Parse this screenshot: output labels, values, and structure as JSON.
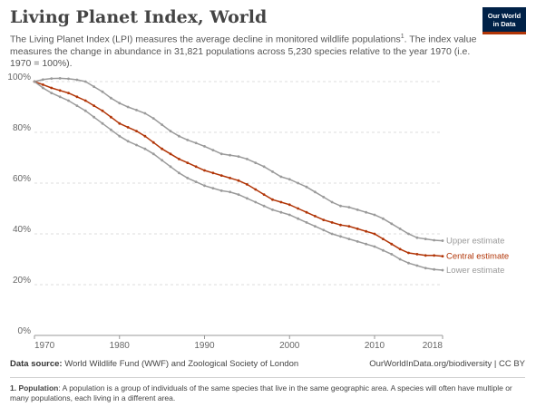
{
  "header": {
    "title": "Living Planet Index, World",
    "subtitle": "The Living Planet Index (LPI) measures the average decline in monitored wildlife populations",
    "subtitle_sup": "1",
    "subtitle_rest": ". The index value measures the change in abundance in 31,821 populations across 5,230 species relative to the year 1970 (i.e. 1970 = 100%).",
    "logo_line1": "Our World",
    "logo_line2": "in Data"
  },
  "footer": {
    "source_label": "Data source:",
    "source_text": " World Wildlife Fund (WWF) and Zoological Society of London",
    "link": "OurWorldInData.org/biodiversity | CC BY",
    "footnote_label": "1. Population",
    "footnote_text": ": A population is a group of individuals of the same species that live in the same geographic area. A species will often have multiple or many populations, each living in a different area."
  },
  "colors": {
    "central": "#b13507",
    "bounds": "#9a9a9a",
    "grid": "#dddddd",
    "axis": "#999999"
  },
  "chart_data": {
    "type": "line",
    "title": "Living Planet Index, World",
    "xlabel": "",
    "ylabel": "",
    "xlim": [
      1970,
      2018
    ],
    "ylim": [
      0,
      100
    ],
    "x_ticks": [
      1970,
      1980,
      1990,
      2000,
      2010,
      2018
    ],
    "y_ticks": [
      0,
      20,
      40,
      60,
      80,
      100
    ],
    "y_tick_labels": [
      "0%",
      "20%",
      "40%",
      "60%",
      "80%",
      "100%"
    ],
    "grid": true,
    "legend": "labels at line ends (right)",
    "x": [
      1970,
      1971,
      1972,
      1973,
      1974,
      1975,
      1976,
      1977,
      1978,
      1979,
      1980,
      1981,
      1982,
      1983,
      1984,
      1985,
      1986,
      1987,
      1988,
      1989,
      1990,
      1991,
      1992,
      1993,
      1994,
      1995,
      1996,
      1997,
      1998,
      1999,
      2000,
      2001,
      2002,
      2003,
      2004,
      2005,
      2006,
      2007,
      2008,
      2009,
      2010,
      2011,
      2012,
      2013,
      2014,
      2015,
      2016,
      2017,
      2018
    ],
    "series": [
      {
        "name": "Upper estimate",
        "values": [
          100,
          100.8,
          101.2,
          101.3,
          101.1,
          100.7,
          100,
          98,
          96,
          93.5,
          91.5,
          90,
          88.8,
          87.5,
          85.5,
          83,
          80.5,
          78.5,
          77,
          75.8,
          74.5,
          73,
          71.5,
          71,
          70.5,
          69.5,
          68,
          66.5,
          64.5,
          62.5,
          61.5,
          60,
          58.5,
          56.5,
          54.5,
          52.5,
          51,
          50.5,
          49.5,
          48.5,
          47.5,
          46,
          44,
          42,
          40,
          38.5,
          38,
          37.5,
          37.3
        ]
      },
      {
        "name": "Central estimate",
        "values": [
          100,
          98.8,
          97.5,
          96.5,
          95.5,
          94,
          92.5,
          90.5,
          88.5,
          86,
          83.5,
          82,
          80.5,
          78.5,
          76,
          73.5,
          71.5,
          69.5,
          68,
          66.5,
          65,
          64,
          63,
          62,
          61,
          59.5,
          57.5,
          55.5,
          53.5,
          52.5,
          51.5,
          50,
          48.5,
          47,
          45.5,
          44.5,
          43.5,
          43,
          42,
          41,
          40,
          38,
          36,
          34,
          32.5,
          32,
          31.5,
          31.5,
          31.2
        ]
      },
      {
        "name": "Lower estimate",
        "values": [
          100,
          97.5,
          95.5,
          94,
          92.5,
          90.5,
          88.5,
          86,
          83.5,
          81,
          78.5,
          76.5,
          75,
          73.5,
          71.5,
          69,
          66.5,
          64,
          62,
          60.5,
          59,
          58,
          57,
          56.5,
          55.5,
          54,
          52.5,
          51,
          49.5,
          48.5,
          47.5,
          46,
          44.5,
          43,
          41.5,
          40,
          39,
          38,
          37,
          36,
          35,
          33.5,
          32,
          30,
          28.5,
          27.5,
          26.5,
          26,
          25.7
        ]
      }
    ]
  }
}
